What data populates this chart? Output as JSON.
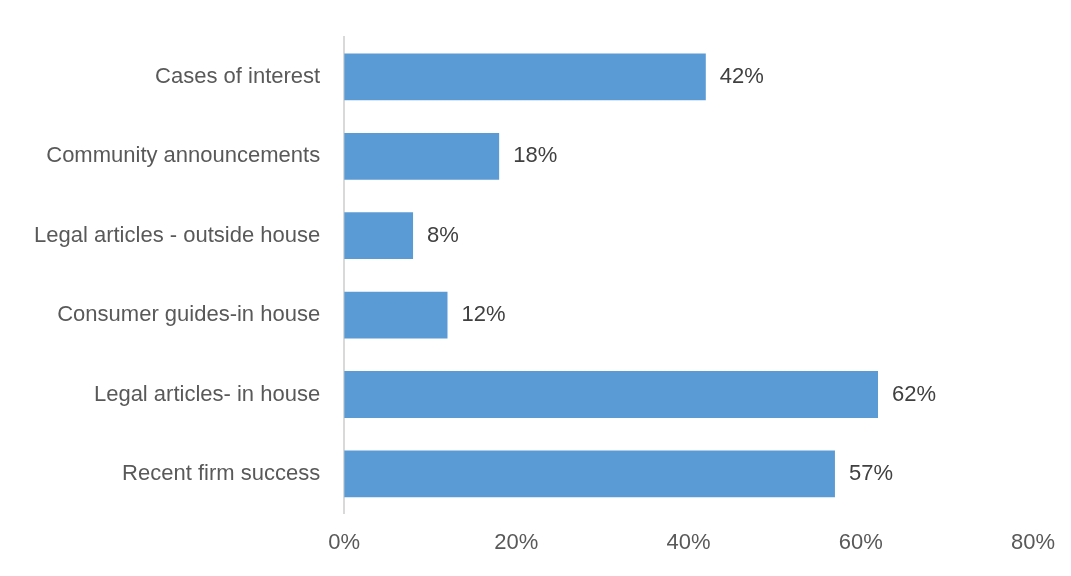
{
  "chart_data": {
    "type": "bar",
    "orientation": "horizontal",
    "categories": [
      "Cases of interest",
      "Community announcements",
      "Legal articles - outside house",
      "Consumer guides-in house",
      "Legal articles- in house",
      "Recent firm success"
    ],
    "values": [
      42,
      18,
      8,
      12,
      62,
      57
    ],
    "value_labels": [
      "42%",
      "18%",
      "8%",
      "12%",
      "62%",
      "57%"
    ],
    "color": "#5b9bd5",
    "xlim": [
      0,
      80
    ],
    "xticks": [
      {
        "value": 0,
        "label": "0%"
      },
      {
        "value": 20,
        "label": "20%"
      },
      {
        "value": 40,
        "label": "40%"
      },
      {
        "value": 60,
        "label": "60%"
      },
      {
        "value": 80,
        "label": "80%"
      }
    ],
    "grid": false,
    "legend": false
  }
}
